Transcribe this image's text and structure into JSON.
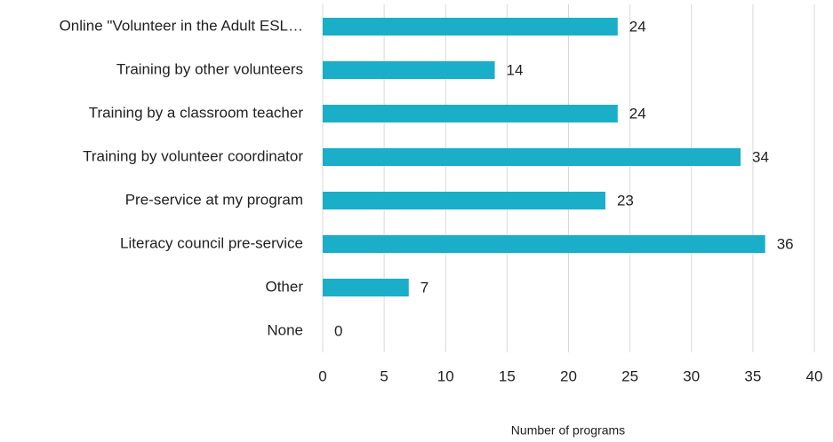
{
  "chart_data": {
    "type": "bar",
    "orientation": "horizontal",
    "categories": [
      "Online \"Volunteer in the Adult ESL…",
      "Training by other volunteers",
      "Training by a classroom teacher",
      "Training by volunteer coordinator",
      "Pre-service at my program",
      "Literacy council pre-service",
      "Other",
      "None"
    ],
    "values": [
      24,
      14,
      24,
      34,
      23,
      36,
      7,
      0
    ],
    "color": "#1aaec9",
    "x_label": "Number of programs",
    "xlim": [
      0,
      40
    ],
    "xticks": [
      0,
      5,
      10,
      15,
      20,
      25,
      30,
      35,
      40
    ],
    "grid": true
  }
}
